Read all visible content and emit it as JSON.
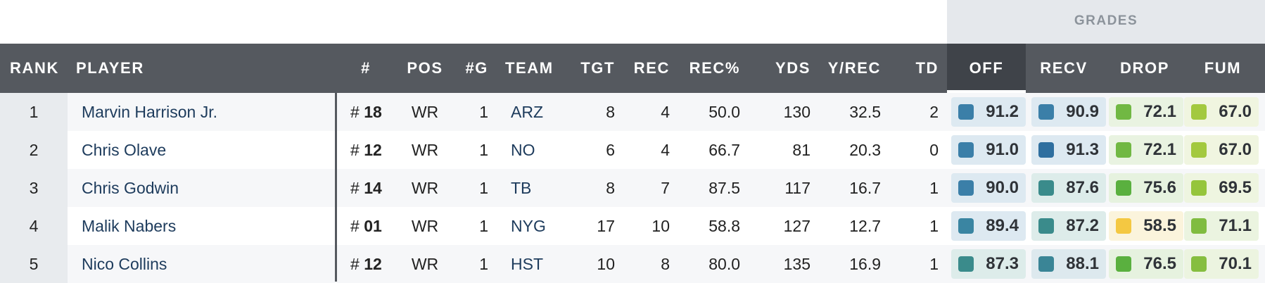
{
  "grades_title": "GRADES",
  "columns": {
    "rank": "RANK",
    "player": "PLAYER",
    "num": "#",
    "pos": "POS",
    "games": "#G",
    "team": "TEAM",
    "tgt": "TGT",
    "rec": "REC",
    "rec_pct": "REC%",
    "yds": "YDS",
    "y_rec": "Y/REC",
    "td": "TD",
    "off": "OFF",
    "recv": "RECV",
    "drop": "DROP",
    "fum": "FUM"
  },
  "active_sort_column": "OFF",
  "rows": [
    {
      "rank": "1",
      "player": "Marvin Harrison Jr.",
      "hash": "#",
      "number": "18",
      "pos": "WR",
      "games": "1",
      "team": "ARZ",
      "tgt": "8",
      "rec": "4",
      "rec_pct": "50.0",
      "yds": "130",
      "y_rec": "32.5",
      "td": "2",
      "grades": [
        {
          "value": "91.2",
          "color": "#3b7fa8",
          "bg": "#dde9f1"
        },
        {
          "value": "90.9",
          "color": "#3b7fa8",
          "bg": "#dde9f1"
        },
        {
          "value": "72.1",
          "color": "#71b843",
          "bg": "#e9f3e1"
        },
        {
          "value": "67.0",
          "color": "#a3c93f",
          "bg": "#f0f5e0"
        }
      ]
    },
    {
      "rank": "2",
      "player": "Chris Olave",
      "hash": "#",
      "number": "12",
      "pos": "WR",
      "games": "1",
      "team": "NO",
      "tgt": "6",
      "rec": "4",
      "rec_pct": "66.7",
      "yds": "81",
      "y_rec": "20.3",
      "td": "0",
      "grades": [
        {
          "value": "91.0",
          "color": "#3b7fa8",
          "bg": "#dde9f1"
        },
        {
          "value": "91.3",
          "color": "#2f6f9f",
          "bg": "#dde9f1"
        },
        {
          "value": "72.1",
          "color": "#71b843",
          "bg": "#e9f3e1"
        },
        {
          "value": "67.0",
          "color": "#a3c93f",
          "bg": "#f0f5e0"
        }
      ]
    },
    {
      "rank": "3",
      "player": "Chris Godwin",
      "hash": "#",
      "number": "14",
      "pos": "WR",
      "games": "1",
      "team": "TB",
      "tgt": "8",
      "rec": "7",
      "rec_pct": "87.5",
      "yds": "117",
      "y_rec": "16.7",
      "td": "1",
      "grades": [
        {
          "value": "90.0",
          "color": "#3b7fa8",
          "bg": "#dde9f1"
        },
        {
          "value": "87.6",
          "color": "#3a8b8b",
          "bg": "#ddecea"
        },
        {
          "value": "75.6",
          "color": "#5ab03f",
          "bg": "#e6f2df"
        },
        {
          "value": "69.5",
          "color": "#95c53c",
          "bg": "#eef5e0"
        }
      ]
    },
    {
      "rank": "4",
      "player": "Malik Nabers",
      "hash": "#",
      "number": "01",
      "pos": "WR",
      "games": "1",
      "team": "NYG",
      "tgt": "17",
      "rec": "10",
      "rec_pct": "58.8",
      "yds": "127",
      "y_rec": "12.7",
      "td": "1",
      "grades": [
        {
          "value": "89.4",
          "color": "#3a85a2",
          "bg": "#dde9f1"
        },
        {
          "value": "87.2",
          "color": "#3a8b8b",
          "bg": "#ddecea"
        },
        {
          "value": "58.5",
          "color": "#f4c842",
          "bg": "#fbf4dc"
        },
        {
          "value": "71.1",
          "color": "#80bc40",
          "bg": "#ebf4e0"
        }
      ]
    },
    {
      "rank": "5",
      "player": "Nico Collins",
      "hash": "#",
      "number": "12",
      "pos": "WR",
      "games": "1",
      "team": "HST",
      "tgt": "10",
      "rec": "8",
      "rec_pct": "80.0",
      "yds": "135",
      "y_rec": "16.9",
      "td": "1",
      "grades": [
        {
          "value": "87.3",
          "color": "#3a8b8b",
          "bg": "#ddecea"
        },
        {
          "value": "88.1",
          "color": "#3a8596",
          "bg": "#dde9ee"
        },
        {
          "value": "76.5",
          "color": "#5ab03f",
          "bg": "#e6f2df"
        },
        {
          "value": "70.1",
          "color": "#86be40",
          "bg": "#ecf4e0"
        }
      ]
    }
  ]
}
